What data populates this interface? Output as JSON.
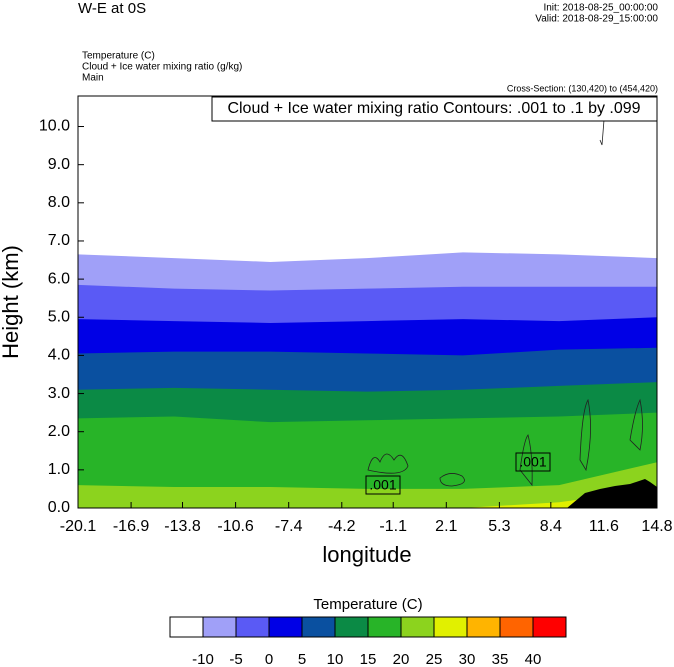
{
  "chart_data": {
    "type": "contour",
    "title": "W-E at 0S",
    "init": "Init: 2018-08-25_00:00:00",
    "valid": "Valid: 2018-08-29_15:00:00",
    "field_1": "Temperature   (C)",
    "field_2": "Cloud + Ice water mixing ratio   (g/kg)",
    "field_3": "Main",
    "cross_section": "Cross-Section: (130,420) to (454,420)",
    "contour_info": "Cloud + Ice water mixing ratio Contours: .001 to .1 by .099",
    "contour_labels": [
      ".001",
      ".001"
    ],
    "x_label": "longitude",
    "y_label": "Height (km)",
    "xlim": [
      -20.1,
      14.8
    ],
    "xticks": [
      -20.1,
      -16.9,
      -13.8,
      -10.6,
      -7.4,
      -4.2,
      -1.1,
      2.1,
      5.3,
      8.4,
      11.6,
      14.8
    ],
    "ylim": [
      0,
      10.8
    ],
    "yticks": [
      {
        "value": 0,
        "label": "0.0"
      },
      {
        "value": 1,
        "label": "1.0"
      },
      {
        "value": 2,
        "label": "2.0"
      },
      {
        "value": 3,
        "label": "3.0"
      },
      {
        "value": 4,
        "label": "4.0"
      },
      {
        "value": 5,
        "label": "5.0"
      },
      {
        "value": 6,
        "label": "6.0"
      },
      {
        "value": 7,
        "label": "7.0"
      },
      {
        "value": 8,
        "label": "8.0"
      },
      {
        "value": 9,
        "label": "9.0"
      },
      {
        "value": 10,
        "label": "10.0"
      }
    ],
    "band_x": [
      -20.1,
      -14.3,
      -8.5,
      -2.7,
      3.1,
      8.9,
      14.8
    ],
    "bands": [
      {
        "color": "#a0a0f8",
        "top": [
          6.65,
          6.55,
          6.45,
          6.55,
          6.7,
          6.65,
          6.55
        ]
      },
      {
        "color": "#5a5af5",
        "top": [
          5.85,
          5.75,
          5.7,
          5.75,
          5.8,
          5.8,
          5.8
        ]
      },
      {
        "color": "#0000e6",
        "top": [
          4.95,
          4.9,
          4.85,
          4.9,
          4.95,
          4.9,
          5.0
        ]
      },
      {
        "color": "#0a50a0",
        "top": [
          4.05,
          4.1,
          4.1,
          4.05,
          4.0,
          4.15,
          4.2
        ]
      },
      {
        "color": "#0b8a45",
        "top": [
          3.1,
          3.15,
          3.1,
          3.05,
          3.1,
          3.2,
          3.3
        ]
      },
      {
        "color": "#28b428",
        "top": [
          2.35,
          2.4,
          2.25,
          2.3,
          2.35,
          2.4,
          2.5
        ]
      },
      {
        "color": "#8cd31e",
        "top": [
          0.6,
          0.55,
          0.55,
          0.5,
          0.5,
          0.6,
          1.2
        ]
      },
      {
        "color": "#e1f000",
        "top": [
          0,
          0,
          0,
          0,
          0,
          0.15,
          0.5
        ]
      }
    ],
    "colorbar": {
      "title": "Temperature  (C)",
      "colors": [
        "#ffffff",
        "#a0a0f8",
        "#5a5af5",
        "#0000e6",
        "#0a50a0",
        "#0b8a45",
        "#28b428",
        "#8cd31e",
        "#e1f000",
        "#ffb400",
        "#ff6400",
        "#ff0000"
      ],
      "levels": [
        -10,
        -5,
        0,
        5,
        10,
        15,
        20,
        25,
        30,
        35,
        40
      ]
    }
  }
}
